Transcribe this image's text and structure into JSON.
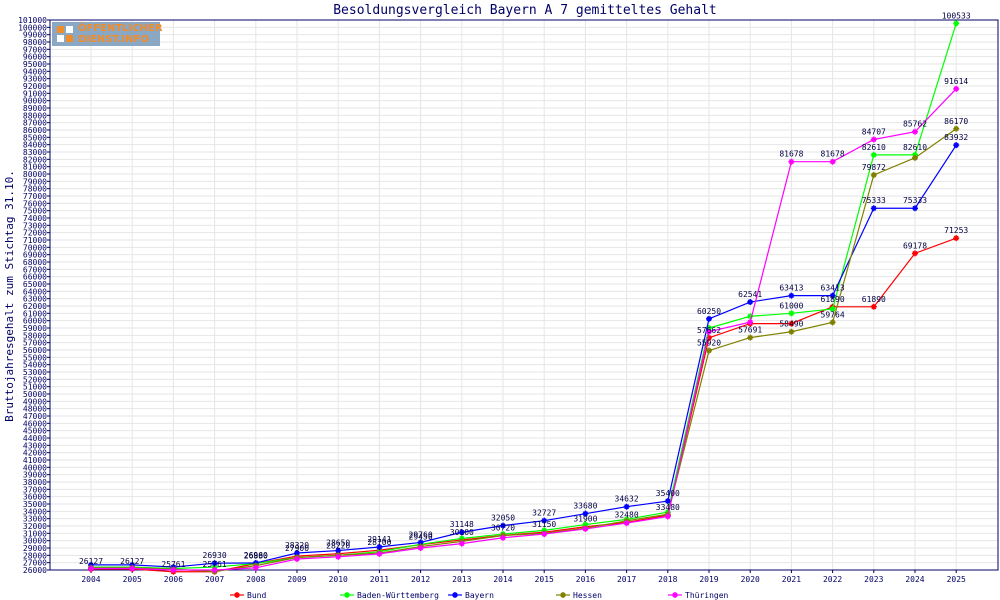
{
  "logo": {
    "line1": "ÖFFENTLICHER",
    "line2": "DIENST.INFO"
  },
  "colors": {
    "axis": "#000066",
    "grid": "#e6e6e6"
  },
  "chart_data": {
    "type": "line",
    "title": "Besoldungsvergleich Bayern A 7 gemitteltes Gehalt",
    "xlabel": "",
    "ylabel": "Bruttojahresgehalt zum Stichtag 31.10.",
    "ylim": [
      26000,
      101000
    ],
    "ytick_step": 1000,
    "grid": true,
    "legend": "bottom",
    "x": [
      "2004",
      "2005",
      "2006",
      "2007",
      "2008",
      "2009",
      "2010",
      "2011",
      "2012",
      "2013",
      "2014",
      "2015",
      "2016",
      "2017",
      "2018",
      "2019",
      "2020",
      "2021",
      "2022",
      "2023",
      "2024",
      "2025"
    ],
    "series": [
      {
        "name": "Bund",
        "color": "#ff0000",
        "values": [
          26127,
          26127,
          25761,
          25761,
          26880,
          27900,
          28220,
          28700,
          29450,
          30100,
          30720,
          31150,
          31900,
          32480,
          33480,
          57662,
          59600,
          59600,
          61890,
          61890,
          69178,
          71253
        ],
        "labels": [
          "26127",
          "26127",
          "25761",
          "25761",
          "26880",
          "27900",
          "28220",
          "28700",
          "29450",
          "30100",
          "30720",
          "31150",
          "31900",
          "32480",
          "33480",
          "57662",
          "",
          "",
          "61890",
          "61890",
          "69178",
          "71253"
        ]
      },
      {
        "name": "Baden-Württemberg",
        "color": "#00ff00",
        "values": [
          26400,
          26400,
          26200,
          26400,
          26880,
          27700,
          28000,
          28500,
          29500,
          30300,
          30900,
          31400,
          32200,
          32900,
          33900,
          59000,
          60600,
          61000,
          61600,
          82610,
          82610,
          100533
        ],
        "labels": [
          "",
          "",
          "",
          "",
          "",
          "",
          "",
          "",
          "",
          "",
          "",
          "",
          "",
          "",
          "",
          "",
          "",
          "61000",
          "",
          "82610",
          "82610",
          "100533"
        ]
      },
      {
        "name": "Bayern",
        "color": "#0000ff",
        "values": [
          26700,
          26700,
          26400,
          26930,
          26960,
          28320,
          28650,
          29141,
          29760,
          31148,
          32050,
          32727,
          33680,
          34632,
          35400,
          60250,
          62541,
          63413,
          63413,
          75333,
          75333,
          83932
        ],
        "labels": [
          "",
          "",
          "",
          "26930",
          "26960",
          "28320",
          "28650",
          "29141",
          "29760",
          "31148",
          "32050",
          "32727",
          "33680",
          "34632",
          "35400",
          "60250",
          "62541",
          "63413",
          "63413",
          "75333",
          "75333",
          "83932"
        ]
      },
      {
        "name": "Hessen",
        "color": "#808000",
        "values": [
          26300,
          26300,
          26100,
          25800,
          26600,
          27700,
          28000,
          28300,
          29200,
          29900,
          30700,
          31000,
          31700,
          32700,
          33600,
          55920,
          57691,
          58490,
          59764,
          79872,
          82200,
          86170
        ],
        "labels": [
          "",
          "",
          "",
          "",
          "",
          "",
          "",
          "",
          "",
          "",
          "",
          "",
          "",
          "",
          "",
          "55920",
          "57691",
          "58490",
          "59764",
          "79872",
          "",
          "86170"
        ]
      },
      {
        "name": "Thüringen",
        "color": "#ff00ff",
        "values": [
          26200,
          26200,
          26000,
          26000,
          26300,
          27500,
          27800,
          28200,
          29000,
          29600,
          30400,
          30900,
          31600,
          32400,
          33300,
          58500,
          59800,
          81678,
          81678,
          84707,
          85762,
          91614
        ],
        "labels": [
          "",
          "",
          "",
          "",
          "",
          "",
          "",
          "",
          "",
          "",
          "",
          "",
          "",
          "",
          "",
          "",
          "",
          "81678",
          "81678",
          "84707",
          "85762",
          "91614"
        ]
      }
    ]
  }
}
